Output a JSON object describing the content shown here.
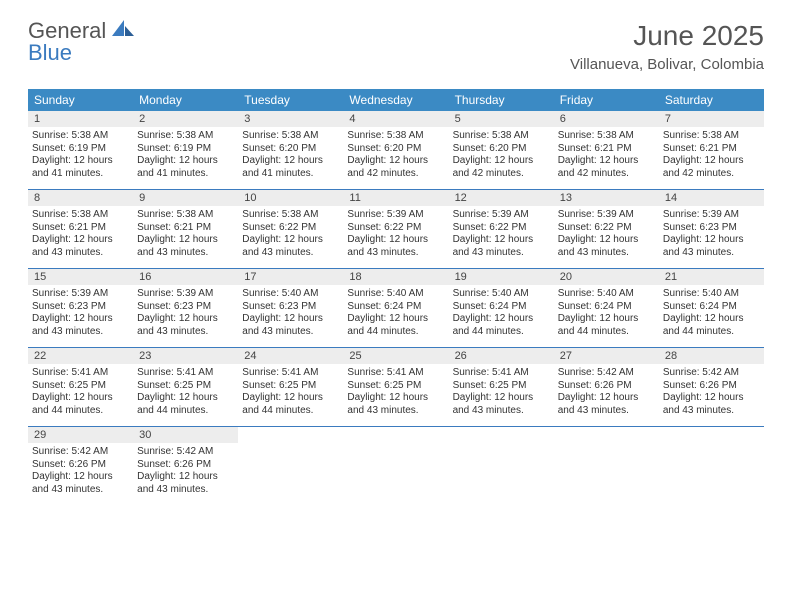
{
  "logo": {
    "textTop": "General",
    "textBottom": "Blue"
  },
  "title": "June 2025",
  "location": "Villanueva, Bolivar, Colombia",
  "colors": {
    "headerBar": "#3b8ac4",
    "accent": "#3b7bbf",
    "dayNumBg": "#ededed",
    "text": "#333333"
  },
  "daysOfWeek": [
    "Sunday",
    "Monday",
    "Tuesday",
    "Wednesday",
    "Thursday",
    "Friday",
    "Saturday"
  ],
  "weeks": [
    [
      {
        "n": "1",
        "sr": "Sunrise: 5:38 AM",
        "ss": "Sunset: 6:19 PM",
        "dl": "Daylight: 12 hours and 41 minutes."
      },
      {
        "n": "2",
        "sr": "Sunrise: 5:38 AM",
        "ss": "Sunset: 6:19 PM",
        "dl": "Daylight: 12 hours and 41 minutes."
      },
      {
        "n": "3",
        "sr": "Sunrise: 5:38 AM",
        "ss": "Sunset: 6:20 PM",
        "dl": "Daylight: 12 hours and 41 minutes."
      },
      {
        "n": "4",
        "sr": "Sunrise: 5:38 AM",
        "ss": "Sunset: 6:20 PM",
        "dl": "Daylight: 12 hours and 42 minutes."
      },
      {
        "n": "5",
        "sr": "Sunrise: 5:38 AM",
        "ss": "Sunset: 6:20 PM",
        "dl": "Daylight: 12 hours and 42 minutes."
      },
      {
        "n": "6",
        "sr": "Sunrise: 5:38 AM",
        "ss": "Sunset: 6:21 PM",
        "dl": "Daylight: 12 hours and 42 minutes."
      },
      {
        "n": "7",
        "sr": "Sunrise: 5:38 AM",
        "ss": "Sunset: 6:21 PM",
        "dl": "Daylight: 12 hours and 42 minutes."
      }
    ],
    [
      {
        "n": "8",
        "sr": "Sunrise: 5:38 AM",
        "ss": "Sunset: 6:21 PM",
        "dl": "Daylight: 12 hours and 43 minutes."
      },
      {
        "n": "9",
        "sr": "Sunrise: 5:38 AM",
        "ss": "Sunset: 6:21 PM",
        "dl": "Daylight: 12 hours and 43 minutes."
      },
      {
        "n": "10",
        "sr": "Sunrise: 5:38 AM",
        "ss": "Sunset: 6:22 PM",
        "dl": "Daylight: 12 hours and 43 minutes."
      },
      {
        "n": "11",
        "sr": "Sunrise: 5:39 AM",
        "ss": "Sunset: 6:22 PM",
        "dl": "Daylight: 12 hours and 43 minutes."
      },
      {
        "n": "12",
        "sr": "Sunrise: 5:39 AM",
        "ss": "Sunset: 6:22 PM",
        "dl": "Daylight: 12 hours and 43 minutes."
      },
      {
        "n": "13",
        "sr": "Sunrise: 5:39 AM",
        "ss": "Sunset: 6:22 PM",
        "dl": "Daylight: 12 hours and 43 minutes."
      },
      {
        "n": "14",
        "sr": "Sunrise: 5:39 AM",
        "ss": "Sunset: 6:23 PM",
        "dl": "Daylight: 12 hours and 43 minutes."
      }
    ],
    [
      {
        "n": "15",
        "sr": "Sunrise: 5:39 AM",
        "ss": "Sunset: 6:23 PM",
        "dl": "Daylight: 12 hours and 43 minutes."
      },
      {
        "n": "16",
        "sr": "Sunrise: 5:39 AM",
        "ss": "Sunset: 6:23 PM",
        "dl": "Daylight: 12 hours and 43 minutes."
      },
      {
        "n": "17",
        "sr": "Sunrise: 5:40 AM",
        "ss": "Sunset: 6:23 PM",
        "dl": "Daylight: 12 hours and 43 minutes."
      },
      {
        "n": "18",
        "sr": "Sunrise: 5:40 AM",
        "ss": "Sunset: 6:24 PM",
        "dl": "Daylight: 12 hours and 44 minutes."
      },
      {
        "n": "19",
        "sr": "Sunrise: 5:40 AM",
        "ss": "Sunset: 6:24 PM",
        "dl": "Daylight: 12 hours and 44 minutes."
      },
      {
        "n": "20",
        "sr": "Sunrise: 5:40 AM",
        "ss": "Sunset: 6:24 PM",
        "dl": "Daylight: 12 hours and 44 minutes."
      },
      {
        "n": "21",
        "sr": "Sunrise: 5:40 AM",
        "ss": "Sunset: 6:24 PM",
        "dl": "Daylight: 12 hours and 44 minutes."
      }
    ],
    [
      {
        "n": "22",
        "sr": "Sunrise: 5:41 AM",
        "ss": "Sunset: 6:25 PM",
        "dl": "Daylight: 12 hours and 44 minutes."
      },
      {
        "n": "23",
        "sr": "Sunrise: 5:41 AM",
        "ss": "Sunset: 6:25 PM",
        "dl": "Daylight: 12 hours and 44 minutes."
      },
      {
        "n": "24",
        "sr": "Sunrise: 5:41 AM",
        "ss": "Sunset: 6:25 PM",
        "dl": "Daylight: 12 hours and 44 minutes."
      },
      {
        "n": "25",
        "sr": "Sunrise: 5:41 AM",
        "ss": "Sunset: 6:25 PM",
        "dl": "Daylight: 12 hours and 43 minutes."
      },
      {
        "n": "26",
        "sr": "Sunrise: 5:41 AM",
        "ss": "Sunset: 6:25 PM",
        "dl": "Daylight: 12 hours and 43 minutes."
      },
      {
        "n": "27",
        "sr": "Sunrise: 5:42 AM",
        "ss": "Sunset: 6:26 PM",
        "dl": "Daylight: 12 hours and 43 minutes."
      },
      {
        "n": "28",
        "sr": "Sunrise: 5:42 AM",
        "ss": "Sunset: 6:26 PM",
        "dl": "Daylight: 12 hours and 43 minutes."
      }
    ],
    [
      {
        "n": "29",
        "sr": "Sunrise: 5:42 AM",
        "ss": "Sunset: 6:26 PM",
        "dl": "Daylight: 12 hours and 43 minutes."
      },
      {
        "n": "30",
        "sr": "Sunrise: 5:42 AM",
        "ss": "Sunset: 6:26 PM",
        "dl": "Daylight: 12 hours and 43 minutes."
      },
      {
        "n": "",
        "sr": "",
        "ss": "",
        "dl": "",
        "empty": true
      },
      {
        "n": "",
        "sr": "",
        "ss": "",
        "dl": "",
        "empty": true
      },
      {
        "n": "",
        "sr": "",
        "ss": "",
        "dl": "",
        "empty": true
      },
      {
        "n": "",
        "sr": "",
        "ss": "",
        "dl": "",
        "empty": true
      },
      {
        "n": "",
        "sr": "",
        "ss": "",
        "dl": "",
        "empty": true
      }
    ]
  ]
}
